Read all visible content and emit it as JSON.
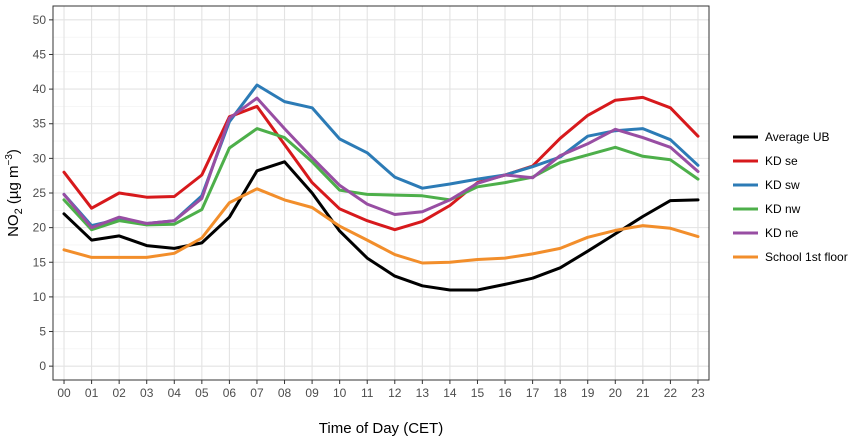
{
  "chart_data": {
    "type": "line",
    "title": "",
    "xlabel": "Time of Day (CET)",
    "ylabel": {
      "prefix": "NO",
      "subscript": "2",
      "unit_open": " (µg m",
      "superscript": "−3",
      "unit_close": ")"
    },
    "ylim": [
      -2,
      52
    ],
    "yticks": [
      0,
      5,
      10,
      15,
      20,
      25,
      30,
      35,
      40,
      45,
      50
    ],
    "xticks": [
      "00",
      "01",
      "02",
      "03",
      "04",
      "05",
      "06",
      "07",
      "08",
      "09",
      "10",
      "11",
      "12",
      "13",
      "14",
      "15",
      "16",
      "17",
      "18",
      "19",
      "20",
      "21",
      "22",
      "23"
    ],
    "grid": true,
    "legend_position": "right",
    "series": [
      {
        "name": "Average UB",
        "color": "#000000",
        "values": [
          22.0,
          18.2,
          18.8,
          17.4,
          17.0,
          17.8,
          21.5,
          28.2,
          29.5,
          25.0,
          19.5,
          15.6,
          13.0,
          11.6,
          11.0,
          11.0,
          11.8,
          12.7,
          14.2,
          16.6,
          19.1,
          21.6,
          23.9,
          24.0
        ]
      },
      {
        "name": "KD se",
        "color": "#d7191c",
        "values": [
          28.0,
          22.8,
          25.0,
          24.4,
          24.5,
          27.6,
          36.0,
          37.5,
          32.0,
          26.5,
          22.7,
          21.0,
          19.7,
          20.9,
          23.2,
          26.5,
          27.6,
          28.9,
          32.9,
          36.2,
          38.4,
          38.8,
          37.3,
          33.2
        ]
      },
      {
        "name": "KD sw",
        "color": "#2c7bb6",
        "values": [
          24.8,
          20.3,
          21.2,
          20.6,
          21.0,
          24.6,
          35.3,
          40.6,
          38.2,
          37.3,
          32.8,
          30.8,
          27.3,
          25.7,
          26.3,
          27.0,
          27.6,
          28.8,
          30.2,
          33.2,
          34.0,
          34.3,
          32.7,
          29.0
        ]
      },
      {
        "name": "KD nw",
        "color": "#4daf4a",
        "values": [
          24.0,
          19.7,
          21.0,
          20.4,
          20.5,
          22.6,
          31.5,
          34.3,
          33.0,
          29.5,
          25.4,
          24.8,
          24.7,
          24.6,
          24.0,
          25.9,
          26.5,
          27.3,
          29.4,
          30.5,
          31.6,
          30.3,
          29.8,
          27.0
        ]
      },
      {
        "name": "KD ne",
        "color": "#984ea3",
        "values": [
          24.8,
          20.0,
          21.5,
          20.6,
          21.0,
          24.2,
          35.8,
          38.7,
          34.3,
          30.1,
          26.1,
          23.4,
          21.9,
          22.3,
          24.0,
          26.4,
          27.6,
          27.2,
          30.4,
          32.1,
          34.2,
          33.0,
          31.6,
          28.1
        ]
      },
      {
        "name": "School 1st floor",
        "color": "#f28e2b",
        "values": [
          16.8,
          15.7,
          15.7,
          15.7,
          16.3,
          18.5,
          23.6,
          25.6,
          24.0,
          22.9,
          20.2,
          18.2,
          16.1,
          14.9,
          15.0,
          15.4,
          15.6,
          16.2,
          17.0,
          18.6,
          19.6,
          20.3,
          19.9,
          18.7
        ]
      }
    ]
  }
}
